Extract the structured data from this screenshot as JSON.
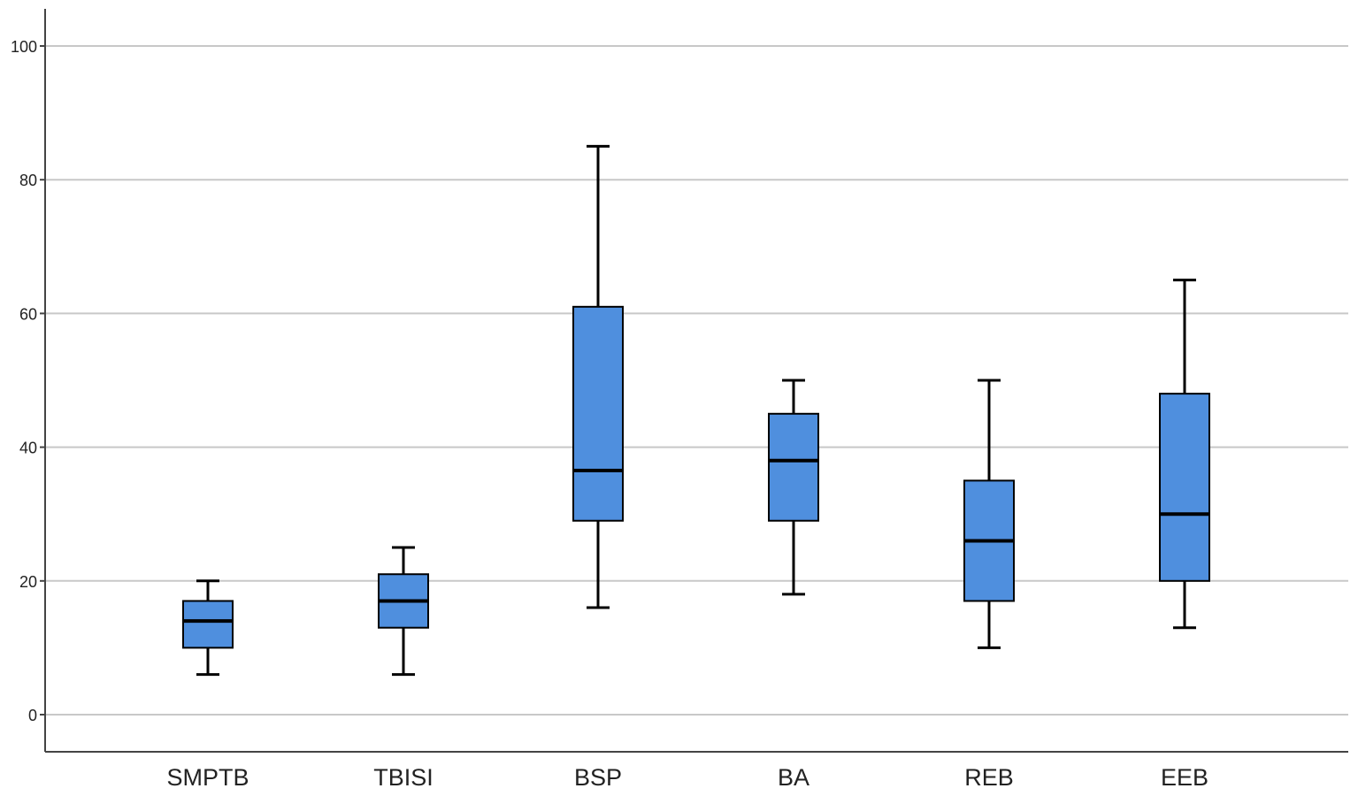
{
  "colors": {
    "box_fill": "#4f8fde",
    "grid": "#c8c8c8"
  },
  "chart_data": {
    "type": "boxplot",
    "title": "",
    "xlabel": "",
    "ylabel": "",
    "ylim": [
      -5,
      105
    ],
    "yticks": [
      0,
      20,
      40,
      60,
      80,
      100
    ],
    "grid": "horizontal",
    "categories": [
      "SMPTB",
      "TBISI",
      "BSP",
      "BA",
      "REB",
      "EEB"
    ],
    "boxes": [
      {
        "category": "SMPTB",
        "min": 6,
        "q1": 10,
        "median": 14,
        "q3": 17,
        "max": 20
      },
      {
        "category": "TBISI",
        "min": 6,
        "q1": 13,
        "median": 17,
        "q3": 21,
        "max": 25
      },
      {
        "category": "BSP",
        "min": 16,
        "q1": 29,
        "median": 36.5,
        "q3": 61,
        "max": 85
      },
      {
        "category": "BA",
        "min": 18,
        "q1": 29,
        "median": 38,
        "q3": 45,
        "max": 50
      },
      {
        "category": "REB",
        "min": 10,
        "q1": 17,
        "median": 26,
        "q3": 35,
        "max": 50
      },
      {
        "category": "EEB",
        "min": 13,
        "q1": 20,
        "median": 30,
        "q3": 48,
        "max": 65
      }
    ]
  }
}
